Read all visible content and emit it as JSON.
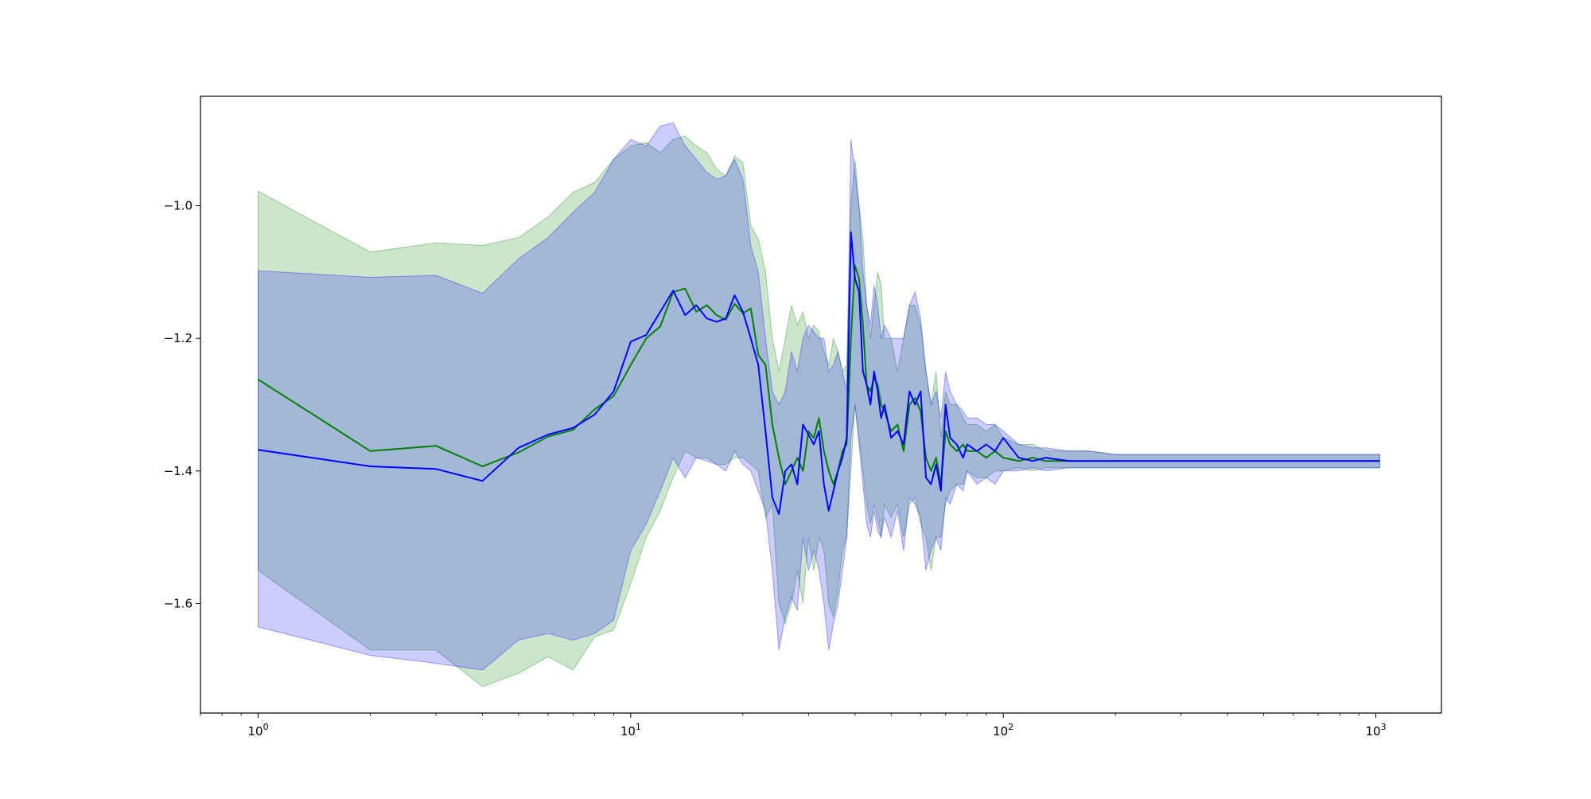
{
  "chart_data": {
    "type": "line",
    "title": "",
    "xlabel": "",
    "ylabel": "",
    "xscale": "log",
    "xlim": [
      0.7,
      1500
    ],
    "ylim": [
      -1.765,
      -0.835
    ],
    "grid": false,
    "legend": "none",
    "x_ticks": [
      {
        "value": 1,
        "base": "10",
        "exp": "0"
      },
      {
        "value": 10,
        "base": "10",
        "exp": "1"
      },
      {
        "value": 100,
        "base": "10",
        "exp": "2"
      },
      {
        "value": 1000,
        "base": "10",
        "exp": "3"
      }
    ],
    "y_ticks": [
      {
        "value": -1.0,
        "label": "−1.0"
      },
      {
        "value": -1.2,
        "label": "−1.2"
      },
      {
        "value": -1.4,
        "label": "−1.4"
      },
      {
        "value": -1.6,
        "label": "−1.6"
      }
    ],
    "series": [
      {
        "color": "#008000",
        "band_color": "#008000",
        "band_opacity": 0.2,
        "x": [
          1,
          2,
          3,
          4,
          5,
          6,
          7,
          8,
          9,
          10,
          11,
          12,
          13,
          14,
          15,
          16,
          17,
          18,
          19,
          20,
          21,
          22,
          23,
          24,
          25,
          26,
          27,
          28,
          29,
          30,
          31,
          32,
          33,
          34,
          35,
          36,
          37,
          38,
          39,
          40,
          41,
          42,
          43,
          44,
          45,
          46,
          47,
          48,
          50,
          52,
          54,
          56,
          58,
          60,
          62,
          64,
          66,
          68,
          70,
          72,
          75,
          78,
          80,
          85,
          90,
          95,
          100,
          110,
          120,
          130,
          150,
          170,
          200,
          250,
          300,
          400,
          500,
          600,
          700,
          800,
          900,
          1024
        ],
        "y": [
          -1.262,
          -1.37,
          -1.362,
          -1.393,
          -1.372,
          -1.348,
          -1.338,
          -1.307,
          -1.287,
          -1.24,
          -1.2,
          -1.182,
          -1.13,
          -1.125,
          -1.16,
          -1.15,
          -1.165,
          -1.172,
          -1.148,
          -1.162,
          -1.155,
          -1.225,
          -1.24,
          -1.33,
          -1.38,
          -1.42,
          -1.4,
          -1.38,
          -1.4,
          -1.34,
          -1.35,
          -1.32,
          -1.37,
          -1.4,
          -1.42,
          -1.4,
          -1.37,
          -1.36,
          -1.2,
          -1.09,
          -1.11,
          -1.18,
          -1.27,
          -1.28,
          -1.26,
          -1.27,
          -1.3,
          -1.31,
          -1.34,
          -1.33,
          -1.37,
          -1.3,
          -1.29,
          -1.31,
          -1.38,
          -1.4,
          -1.38,
          -1.42,
          -1.34,
          -1.36,
          -1.37,
          -1.36,
          -1.37,
          -1.37,
          -1.38,
          -1.37,
          -1.38,
          -1.385,
          -1.38,
          -1.385,
          -1.385,
          -1.385,
          -1.385,
          -1.385,
          -1.385,
          -1.385,
          -1.385,
          -1.385,
          -1.385,
          -1.385,
          -1.385,
          -1.385
        ],
        "upper": [
          -0.978,
          -1.07,
          -1.056,
          -1.06,
          -1.048,
          -1.017,
          -0.98,
          -0.965,
          -0.93,
          -0.91,
          -0.905,
          -0.92,
          -0.9,
          -0.895,
          -0.91,
          -0.92,
          -0.945,
          -0.955,
          -0.925,
          -0.935,
          -1.03,
          -1.05,
          -1.1,
          -1.2,
          -1.25,
          -1.2,
          -1.15,
          -1.18,
          -1.16,
          -1.2,
          -1.18,
          -1.19,
          -1.22,
          -1.24,
          -1.2,
          -1.22,
          -1.25,
          -1.24,
          -1.0,
          -0.93,
          -1.0,
          -1.05,
          -1.15,
          -1.2,
          -1.15,
          -1.1,
          -1.12,
          -1.2,
          -1.2,
          -1.25,
          -1.2,
          -1.15,
          -1.15,
          -1.18,
          -1.25,
          -1.3,
          -1.25,
          -1.35,
          -1.28,
          -1.3,
          -1.3,
          -1.32,
          -1.33,
          -1.33,
          -1.34,
          -1.33,
          -1.35,
          -1.36,
          -1.36,
          -1.37,
          -1.37,
          -1.37,
          -1.375,
          -1.375,
          -1.375,
          -1.375,
          -1.375,
          -1.375,
          -1.375,
          -1.375,
          -1.375,
          -1.375
        ],
        "lower": [
          -1.55,
          -1.67,
          -1.67,
          -1.725,
          -1.705,
          -1.68,
          -1.7,
          -1.65,
          -1.64,
          -1.57,
          -1.5,
          -1.46,
          -1.41,
          -1.37,
          -1.38,
          -1.38,
          -1.39,
          -1.39,
          -1.38,
          -1.38,
          -1.39,
          -1.4,
          -1.47,
          -1.45,
          -1.6,
          -1.63,
          -1.6,
          -1.55,
          -1.6,
          -1.5,
          -1.55,
          -1.5,
          -1.52,
          -1.6,
          -1.62,
          -1.58,
          -1.52,
          -1.5,
          -1.4,
          -1.3,
          -1.35,
          -1.4,
          -1.45,
          -1.48,
          -1.45,
          -1.47,
          -1.5,
          -1.45,
          -1.47,
          -1.45,
          -1.5,
          -1.45,
          -1.44,
          -1.48,
          -1.5,
          -1.55,
          -1.5,
          -1.5,
          -1.45,
          -1.43,
          -1.42,
          -1.42,
          -1.4,
          -1.41,
          -1.41,
          -1.4,
          -1.4,
          -1.395,
          -1.4,
          -1.395,
          -1.395,
          -1.395,
          -1.395,
          -1.395,
          -1.395,
          -1.395,
          -1.395,
          -1.395,
          -1.395,
          -1.395,
          -1.395,
          -1.395
        ]
      },
      {
        "color": "#0000ff",
        "band_color": "#0000ff",
        "band_opacity": 0.2,
        "x": [
          1,
          2,
          3,
          4,
          5,
          6,
          7,
          8,
          9,
          10,
          11,
          12,
          13,
          14,
          15,
          16,
          17,
          18,
          19,
          20,
          21,
          22,
          23,
          24,
          25,
          26,
          27,
          28,
          29,
          30,
          31,
          32,
          33,
          34,
          35,
          36,
          37,
          38,
          39,
          40,
          41,
          42,
          43,
          44,
          45,
          46,
          47,
          48,
          50,
          52,
          54,
          56,
          58,
          60,
          62,
          64,
          66,
          68,
          70,
          72,
          75,
          78,
          80,
          85,
          90,
          95,
          100,
          110,
          120,
          130,
          150,
          170,
          200,
          250,
          300,
          400,
          500,
          600,
          700,
          800,
          900,
          1024
        ],
        "y": [
          -1.368,
          -1.393,
          -1.397,
          -1.415,
          -1.365,
          -1.345,
          -1.335,
          -1.315,
          -1.28,
          -1.205,
          -1.195,
          -1.16,
          -1.128,
          -1.165,
          -1.15,
          -1.17,
          -1.175,
          -1.17,
          -1.135,
          -1.16,
          -1.2,
          -1.24,
          -1.34,
          -1.44,
          -1.465,
          -1.4,
          -1.39,
          -1.42,
          -1.33,
          -1.345,
          -1.36,
          -1.34,
          -1.42,
          -1.46,
          -1.43,
          -1.4,
          -1.38,
          -1.35,
          -1.04,
          -1.11,
          -1.13,
          -1.25,
          -1.27,
          -1.3,
          -1.25,
          -1.28,
          -1.32,
          -1.3,
          -1.35,
          -1.34,
          -1.36,
          -1.28,
          -1.3,
          -1.28,
          -1.41,
          -1.42,
          -1.39,
          -1.43,
          -1.3,
          -1.35,
          -1.36,
          -1.38,
          -1.36,
          -1.37,
          -1.36,
          -1.37,
          -1.35,
          -1.38,
          -1.385,
          -1.38,
          -1.385,
          -1.385,
          -1.385,
          -1.385,
          -1.385,
          -1.385,
          -1.385,
          -1.385,
          -1.385,
          -1.385,
          -1.385,
          -1.385
        ],
        "upper": [
          -1.098,
          -1.108,
          -1.105,
          -1.132,
          -1.08,
          -1.048,
          -1.01,
          -0.98,
          -0.93,
          -0.9,
          -0.91,
          -0.88,
          -0.875,
          -0.91,
          -0.93,
          -0.95,
          -0.96,
          -0.955,
          -0.93,
          -0.96,
          -1.06,
          -1.1,
          -1.2,
          -1.28,
          -1.3,
          -1.28,
          -1.22,
          -1.25,
          -1.2,
          -1.18,
          -1.19,
          -1.2,
          -1.2,
          -1.25,
          -1.24,
          -1.22,
          -1.25,
          -1.28,
          -0.9,
          -0.95,
          -1.0,
          -1.1,
          -1.15,
          -1.18,
          -1.12,
          -1.15,
          -1.2,
          -1.18,
          -1.2,
          -1.2,
          -1.2,
          -1.15,
          -1.13,
          -1.17,
          -1.25,
          -1.3,
          -1.28,
          -1.32,
          -1.25,
          -1.28,
          -1.3,
          -1.31,
          -1.32,
          -1.32,
          -1.33,
          -1.33,
          -1.34,
          -1.36,
          -1.365,
          -1.365,
          -1.37,
          -1.37,
          -1.375,
          -1.375,
          -1.375,
          -1.375,
          -1.375,
          -1.375,
          -1.375,
          -1.375,
          -1.375,
          -1.375
        ],
        "lower": [
          -1.635,
          -1.678,
          -1.69,
          -1.7,
          -1.655,
          -1.645,
          -1.655,
          -1.645,
          -1.625,
          -1.52,
          -1.48,
          -1.43,
          -1.38,
          -1.41,
          -1.38,
          -1.385,
          -1.39,
          -1.4,
          -1.37,
          -1.39,
          -1.4,
          -1.43,
          -1.46,
          -1.55,
          -1.67,
          -1.62,
          -1.59,
          -1.61,
          -1.5,
          -1.55,
          -1.52,
          -1.55,
          -1.6,
          -1.67,
          -1.63,
          -1.6,
          -1.55,
          -1.5,
          -1.35,
          -1.3,
          -1.36,
          -1.42,
          -1.48,
          -1.5,
          -1.46,
          -1.49,
          -1.5,
          -1.47,
          -1.5,
          -1.46,
          -1.52,
          -1.44,
          -1.45,
          -1.47,
          -1.55,
          -1.52,
          -1.5,
          -1.52,
          -1.44,
          -1.45,
          -1.42,
          -1.43,
          -1.4,
          -1.42,
          -1.41,
          -1.42,
          -1.4,
          -1.4,
          -1.395,
          -1.4,
          -1.395,
          -1.395,
          -1.395,
          -1.395,
          -1.395,
          -1.395,
          -1.395,
          -1.395,
          -1.395,
          -1.395,
          -1.395,
          -1.395
        ]
      }
    ]
  }
}
